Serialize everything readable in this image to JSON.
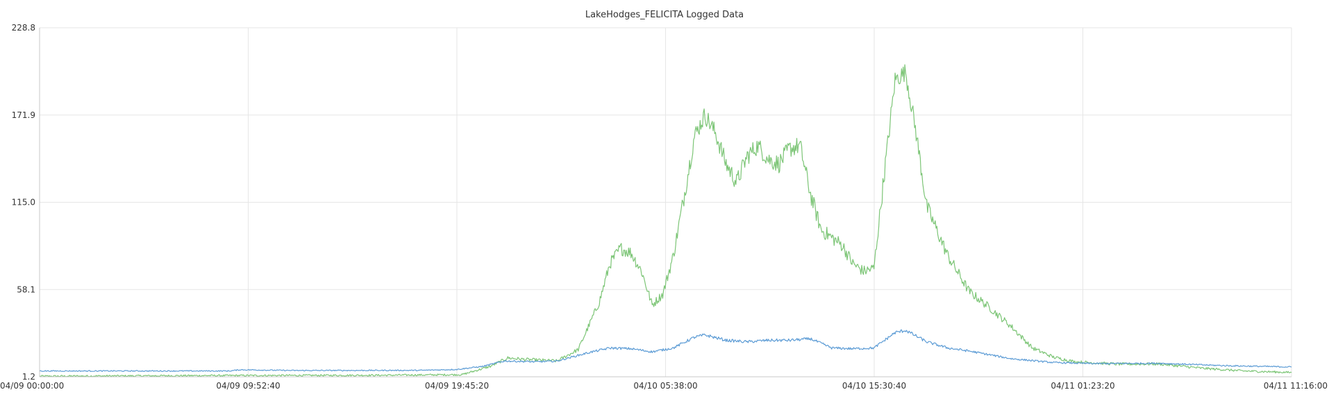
{
  "chart_data": {
    "type": "line",
    "title": "LakeHodges_FELICITA Logged Data",
    "xlabel": "",
    "ylabel": "",
    "x_range": [
      "04/09 00:00:00",
      "04/11 11:16:00"
    ],
    "ylim": [
      1.2,
      228.8
    ],
    "x_ticks": [
      "04/09 00:00:00",
      "04/09 09:52:40",
      "04/09 19:45:20",
      "04/10 05:38:00",
      "04/10 15:30:40",
      "04/11 01:23:20",
      "04/11 11:16:00"
    ],
    "y_ticks": [
      "1.2",
      "58.1",
      "115.0",
      "171.9",
      "228.8"
    ],
    "grid": true,
    "legend": "none",
    "series": [
      {
        "color": "#7cc576",
        "points": [
          [
            "04/09 00:00:00",
            1.6
          ],
          [
            "04/09 08:00:00",
            2.0
          ],
          [
            "04/09 16:00:00",
            2.2
          ],
          [
            "04/09 20:00:00",
            2.6
          ],
          [
            "04/09 21:20:00",
            8.0
          ],
          [
            "04/09 22:10:00",
            13.5
          ],
          [
            "04/09 23:00:00",
            12.5
          ],
          [
            "04/10 00:30:00",
            11.5
          ],
          [
            "04/10 01:30:00",
            19.0
          ],
          [
            "04/10 02:30:00",
            50.0
          ],
          [
            "04/10 03:00:00",
            75.0
          ],
          [
            "04/10 03:30:00",
            85.0
          ],
          [
            "04/10 04:00:00",
            82.0
          ],
          [
            "04/10 04:30:00",
            70.0
          ],
          [
            "04/10 05:00:00",
            48.0
          ],
          [
            "04/10 05:30:00",
            55.0
          ],
          [
            "04/10 06:00:00",
            80.0
          ],
          [
            "04/10 06:30:00",
            118.0
          ],
          [
            "04/10 07:00:00",
            158.0
          ],
          [
            "04/10 07:30:00",
            172.0
          ],
          [
            "04/10 08:00:00",
            160.0
          ],
          [
            "04/10 08:30:00",
            140.0
          ],
          [
            "04/10 09:00:00",
            128.0
          ],
          [
            "04/10 09:30:00",
            145.0
          ],
          [
            "04/10 10:00:00",
            152.0
          ],
          [
            "04/10 10:30:00",
            143.0
          ],
          [
            "04/10 11:00:00",
            140.0
          ],
          [
            "04/10 11:30:00",
            150.0
          ],
          [
            "04/10 12:00:00",
            152.0
          ],
          [
            "04/10 12:30:00",
            120.0
          ],
          [
            "04/10 13:00:00",
            97.0
          ],
          [
            "04/10 13:30:00",
            92.0
          ],
          [
            "04/10 14:00:00",
            87.0
          ],
          [
            "04/10 14:30:00",
            75.0
          ],
          [
            "04/10 15:00:00",
            70.0
          ],
          [
            "04/10 15:30:00",
            72.0
          ],
          [
            "04/10 16:00:00",
            135.0
          ],
          [
            "04/10 16:30:00",
            195.0
          ],
          [
            "04/10 17:00:00",
            200.0
          ],
          [
            "04/10 17:30:00",
            160.0
          ],
          [
            "04/10 18:00:00",
            112.0
          ],
          [
            "04/10 19:00:00",
            80.0
          ],
          [
            "04/10 20:00:00",
            57.0
          ],
          [
            "04/10 21:00:00",
            46.0
          ],
          [
            "04/10 22:00:00",
            34.0
          ],
          [
            "04/10 23:00:00",
            20.0
          ],
          [
            "04/11 00:00:00",
            14.0
          ],
          [
            "04/11 01:00:00",
            11.0
          ],
          [
            "04/11 03:00:00",
            9.5
          ],
          [
            "04/11 05:00:00",
            9.6
          ],
          [
            "04/11 07:00:00",
            6.8
          ],
          [
            "04/11 09:00:00",
            5.0
          ],
          [
            "04/11 11:16:00",
            4.0
          ]
        ]
      },
      {
        "color": "#5b9bd5",
        "points": [
          [
            "04/09 00:00:00",
            5.0
          ],
          [
            "04/09 09:00:00",
            5.0
          ],
          [
            "04/09 09:30:00",
            5.8
          ],
          [
            "04/09 12:00:00",
            5.3
          ],
          [
            "04/09 18:00:00",
            5.4
          ],
          [
            "04/09 19:45:00",
            6.0
          ],
          [
            "04/09 21:00:00",
            8.0
          ],
          [
            "04/09 22:00:00",
            11.5
          ],
          [
            "04/09 23:30:00",
            11.0
          ],
          [
            "04/10 00:30:00",
            11.5
          ],
          [
            "04/10 02:00:00",
            17.0
          ],
          [
            "04/10 03:00:00",
            20.0
          ],
          [
            "04/10 04:00:00",
            19.5
          ],
          [
            "04/10 05:00:00",
            17.5
          ],
          [
            "04/10 06:00:00",
            20.0
          ],
          [
            "04/10 07:00:00",
            27.0
          ],
          [
            "04/10 07:30:00",
            28.5
          ],
          [
            "04/10 08:30:00",
            25.0
          ],
          [
            "04/10 09:30:00",
            24.0
          ],
          [
            "04/10 10:30:00",
            25.0
          ],
          [
            "04/10 11:30:00",
            25.0
          ],
          [
            "04/10 12:30:00",
            26.0
          ],
          [
            "04/10 13:30:00",
            20.0
          ],
          [
            "04/10 14:30:00",
            19.5
          ],
          [
            "04/10 15:30:00",
            20.0
          ],
          [
            "04/10 16:30:00",
            30.0
          ],
          [
            "04/10 17:00:00",
            31.5
          ],
          [
            "04/10 18:00:00",
            24.0
          ],
          [
            "04/10 19:00:00",
            20.0
          ],
          [
            "04/10 20:00:00",
            18.0
          ],
          [
            "04/10 22:00:00",
            13.0
          ],
          [
            "04/11 00:00:00",
            10.5
          ],
          [
            "04/11 02:00:00",
            9.8
          ],
          [
            "04/11 05:00:00",
            10.0
          ],
          [
            "04/11 08:00:00",
            8.5
          ],
          [
            "04/11 11:16:00",
            7.6
          ]
        ]
      }
    ]
  }
}
